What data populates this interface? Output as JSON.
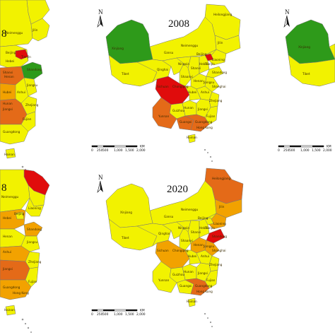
{
  "colors": {
    "level_1": "#2e9a1a",
    "level_2": "#f2f200",
    "level_3": "#f2a200",
    "level_4": "#e46a18",
    "level_5": "#e00c0c",
    "border": "#777777",
    "islands": "#999999"
  },
  "compass_letter": "N",
  "scale": {
    "ticks": [
      "0",
      "250",
      "500",
      "1,000",
      "1,500",
      "2,000"
    ],
    "unit": "KM"
  },
  "panels": [
    {
      "id": "top-left",
      "year": "8",
      "labels": [
        "Neimenggu",
        "Jilin",
        "Beijing",
        "Tianjin",
        "Hebei",
        "Shanxi",
        "Shandong",
        "Henan",
        "Jiangsu",
        "Anhui",
        "Hubei",
        "Zhejiang",
        "Fujian",
        "Jiangxi",
        "Hunan",
        "Guangdong",
        "Hainan"
      ]
    },
    {
      "id": "top-middle",
      "year": "2008",
      "labels": [
        "Heilongjiang",
        "Xinjiang",
        "Gansu",
        "Neimenggu",
        "Jilin",
        "Liaoning",
        "Beijing",
        "Tianjin",
        "Ningxia",
        "Hebei",
        "Shanxi",
        "Shandong",
        "Qinghai",
        "Shaanxi",
        "Henan",
        "Tibet",
        "Jiangsu",
        "Sichuan",
        "Chongqing",
        "Hubei",
        "Anhui",
        "Shanghai",
        "Zhejiang",
        "Hunan",
        "Jiangxi",
        "Guizhou",
        "Fujian",
        "Yunnan",
        "Guangxi",
        "Guangdong",
        "Hong Kong",
        "Hainan"
      ]
    },
    {
      "id": "top-right",
      "year": "",
      "labels": [
        "Xinjiang",
        "Tibet"
      ]
    },
    {
      "id": "bottom-left",
      "year": "8",
      "labels": [
        "Neimenggu",
        "Liaoning",
        "Beijing",
        "Hebei",
        "Shandong",
        "Henan",
        "Jiangsu",
        "Anhui",
        "Zhejiang",
        "Jiangxi",
        "Fujian",
        "Guangdong",
        "Hong Kong",
        "Hainan"
      ]
    },
    {
      "id": "bottom-middle",
      "year": "2020",
      "labels": [
        "Heilongjiang",
        "Jilin",
        "Xinjiang",
        "Gansu",
        "Neimenggu",
        "Liaoning",
        "Beijing",
        "Ningxia",
        "Tianjin",
        "Hebei",
        "Qinghai",
        "Shanxi",
        "Shandong",
        "Tibet",
        "Shaanxi",
        "Henan",
        "Jiangsu",
        "Sichuan",
        "Chongqing",
        "Hubei",
        "Anhui",
        "Shanghai",
        "Zhejiang",
        "Guizhou",
        "Hunan",
        "Jiangxi",
        "Fujian",
        "Yunnan",
        "Guangxi",
        "Guangdong",
        "Hong Kong",
        "Hainan"
      ]
    }
  ]
}
